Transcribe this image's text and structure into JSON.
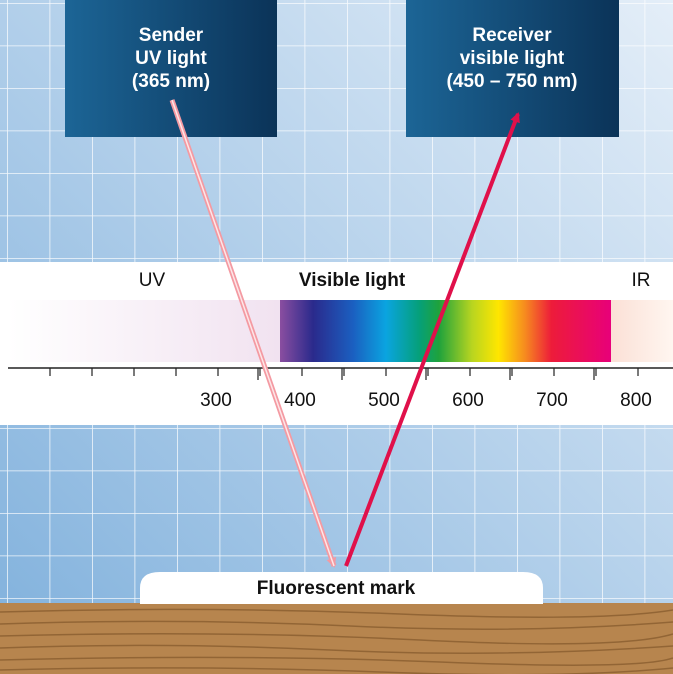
{
  "sender": {
    "lines": [
      "Sender",
      "UV light",
      "(365 nm)"
    ]
  },
  "receiver": {
    "lines": [
      "Receiver",
      "visible light",
      "(450 – 750 nm)"
    ]
  },
  "spectrum": {
    "regions": [
      "UV",
      "Visible light",
      "IR"
    ],
    "scale": [
      300,
      400,
      500,
      600,
      700,
      800
    ]
  },
  "mark": {
    "label": "Fluorescent mark"
  }
}
